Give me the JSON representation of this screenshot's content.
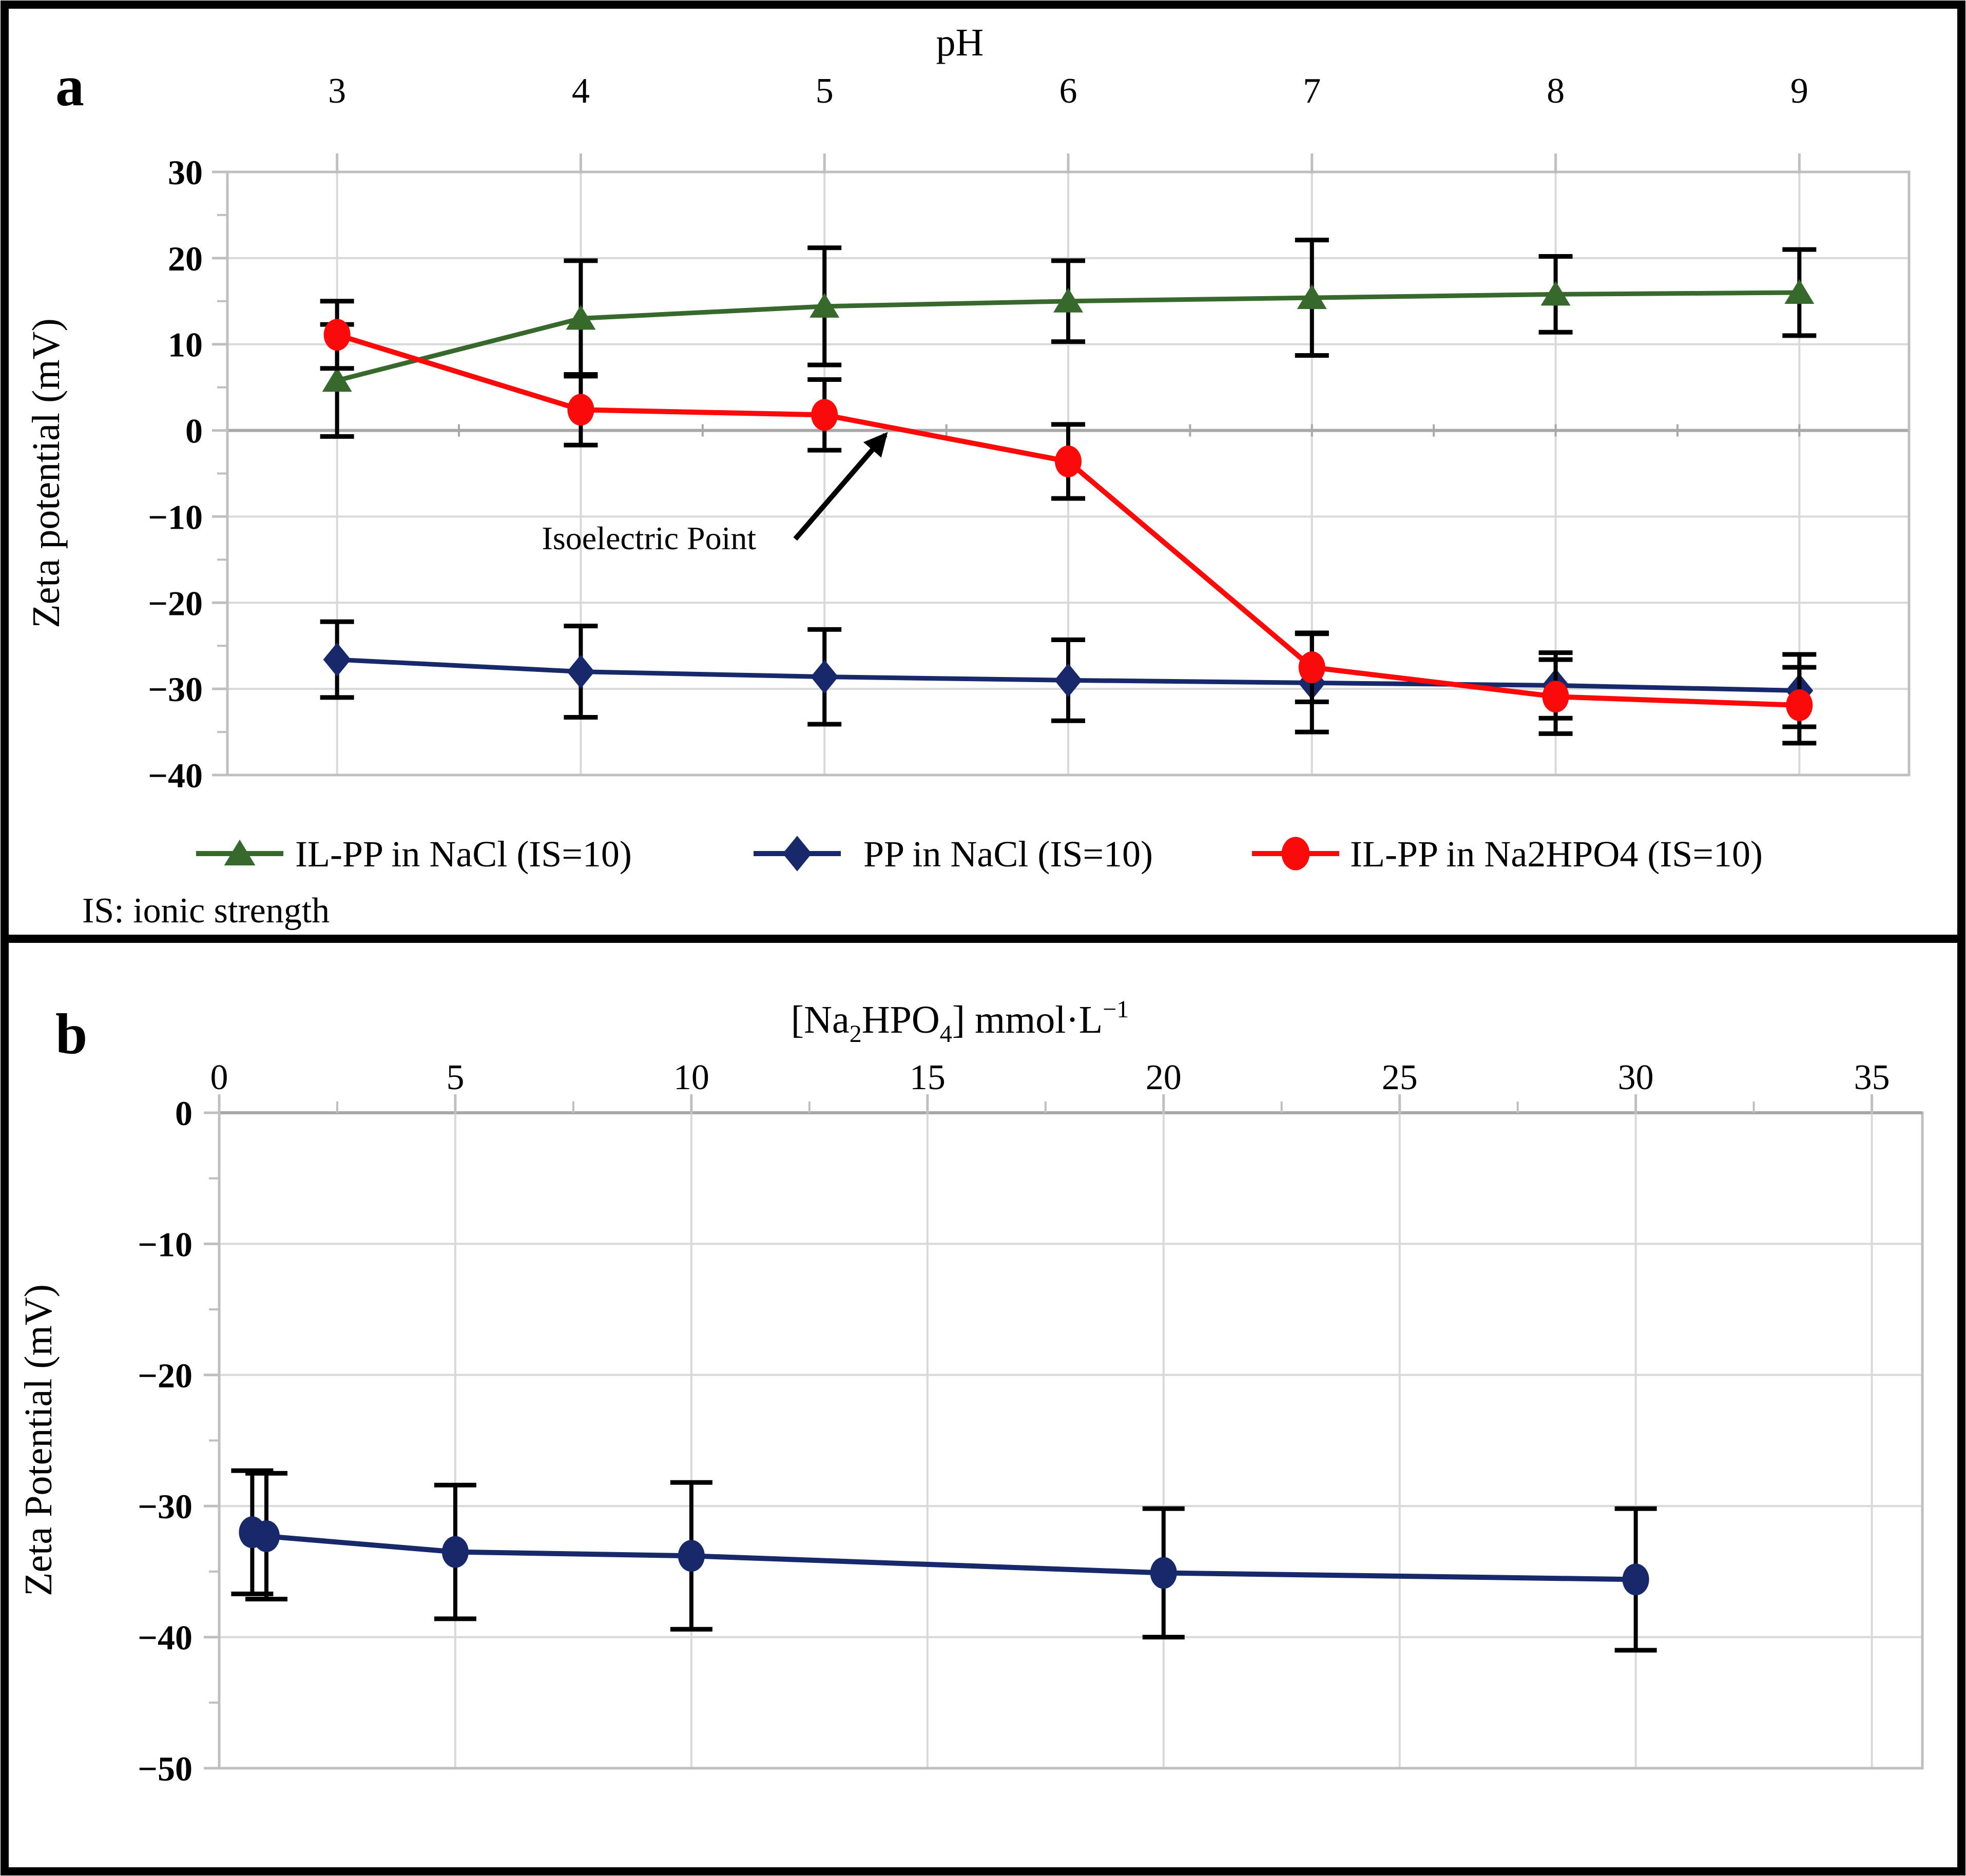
{
  "colors": {
    "grid": "#d9d9d9",
    "axis": "#bfbfbf",
    "zero_line": "#a8a8a8",
    "error_bar": "#000000",
    "text": "#000000",
    "frame": "#000000",
    "green_series": "#37682c",
    "navy_series": "#17296b",
    "red_series": "#fb0a0a"
  },
  "chart_data": [
    {
      "type": "line",
      "panel_label": "a",
      "xlabel": "pH",
      "ylabel": "Zeta potential (mV)",
      "x_ticks": [
        3,
        4,
        5,
        6,
        7,
        8,
        9
      ],
      "y_ticks": [
        30,
        20,
        10,
        0,
        -10,
        -20,
        -30,
        -40
      ],
      "xlim": [
        2.55,
        9.45
      ],
      "ylim": [
        -40,
        30
      ],
      "grid": "on",
      "legend_position": "bottom",
      "note": "IS: ionic strength",
      "annotation": {
        "text": "Isoelectric Point",
        "text_x": 4.28,
        "text_y": -13.8,
        "arrow_from": [
          4.88,
          -12.6
        ],
        "arrow_to": [
          5.25,
          -0.5
        ]
      },
      "series": [
        {
          "name": "IL-PP in NaCl (IS=10)",
          "marker": "triangle",
          "color": "#37682c",
          "x": [
            3,
            4,
            5,
            6,
            7,
            8,
            9
          ],
          "y": [
            5.8,
            13.0,
            14.4,
            15.0,
            15.4,
            15.8,
            16.0
          ],
          "err": [
            6.5,
            6.7,
            6.8,
            4.7,
            6.7,
            4.4,
            5.0
          ]
        },
        {
          "name": "PP in NaCl (IS=10)",
          "marker": "diamond",
          "color": "#17296b",
          "x": [
            3,
            4,
            5,
            6,
            7,
            8,
            9
          ],
          "y": [
            -26.6,
            -28.0,
            -28.6,
            -29.0,
            -29.3,
            -29.6,
            -30.2
          ],
          "err": [
            4.4,
            5.3,
            5.5,
            4.7,
            5.7,
            3.8,
            4.2
          ]
        },
        {
          "name": "IL-PP in Na2HPO4 (IS=10)",
          "marker": "circle",
          "color": "#fb0a0a",
          "x": [
            3,
            4,
            5,
            6,
            7,
            8,
            9
          ],
          "y": [
            11.1,
            2.4,
            1.8,
            -3.6,
            -27.5,
            -30.9,
            -31.9
          ],
          "err": [
            3.9,
            4.1,
            4.1,
            4.3,
            4.0,
            4.3,
            4.4
          ]
        }
      ]
    },
    {
      "type": "line",
      "panel_label": "b",
      "xlabel": "[Na2HPO4] mmol·L-1",
      "xlabel_parts": [
        {
          "t": "[Na"
        },
        {
          "t": "2",
          "s": "sub"
        },
        {
          "t": "HPO"
        },
        {
          "t": "4",
          "s": "sub"
        },
        {
          "t": "] mmol·L"
        },
        {
          "t": "−1",
          "s": "sup"
        }
      ],
      "ylabel": "Zeta Potential (mV)",
      "x_ticks": [
        0,
        5,
        10,
        15,
        20,
        25,
        30,
        35
      ],
      "y_ticks": [
        0,
        -10,
        -20,
        -30,
        -40,
        -50
      ],
      "xlim": [
        0,
        36.07
      ],
      "ylim": [
        -50,
        0
      ],
      "grid": "on",
      "series": [
        {
          "marker": "circle",
          "color": "#17296b",
          "x": [
            0.7,
            1,
            5,
            10,
            20,
            30
          ],
          "y": [
            -32.0,
            -32.3,
            -33.5,
            -33.8,
            -35.1,
            -35.6
          ],
          "err": [
            4.7,
            4.8,
            5.1,
            5.6,
            4.9,
            5.4
          ]
        }
      ]
    }
  ]
}
